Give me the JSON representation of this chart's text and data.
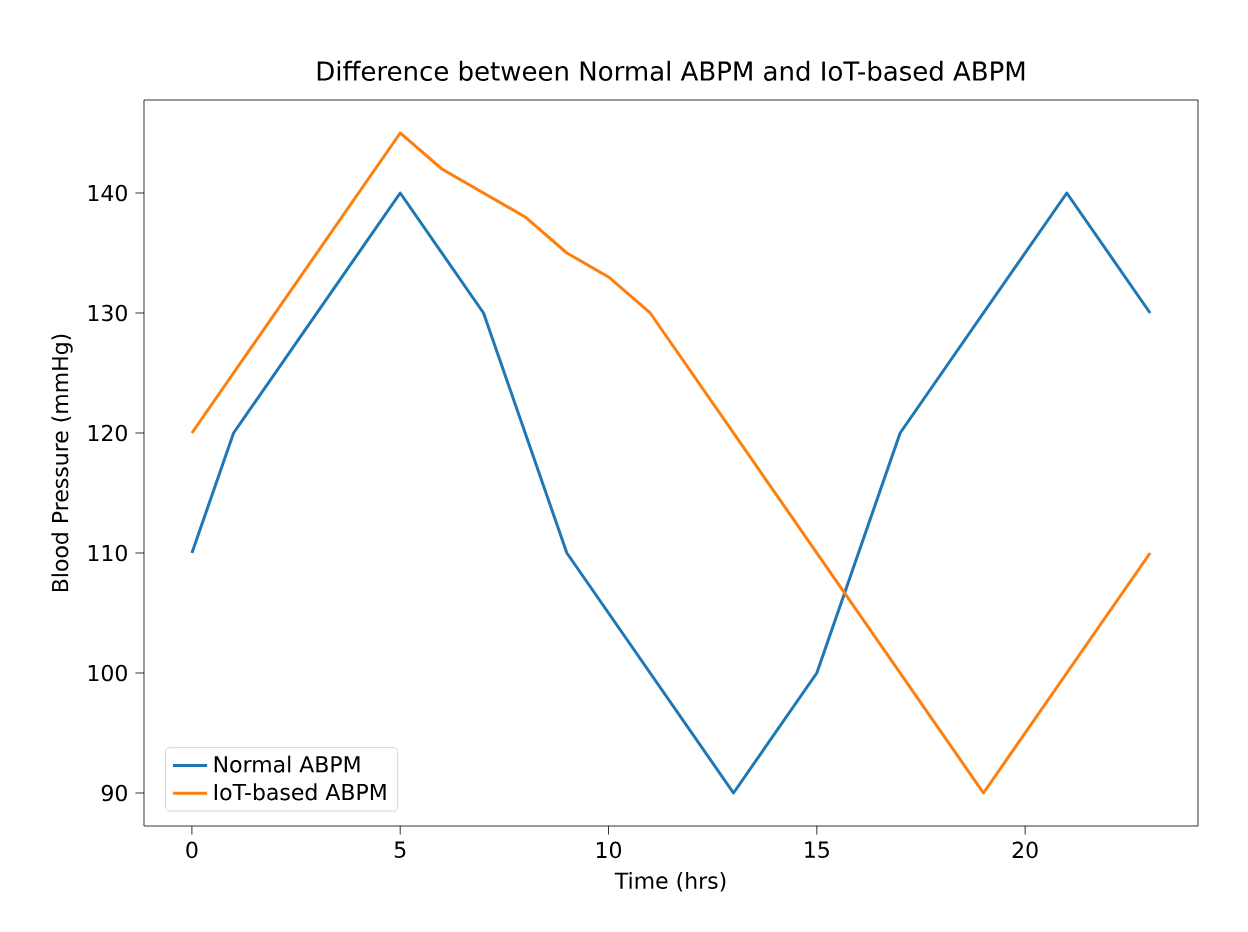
{
  "chart_data": {
    "type": "line",
    "title": "Difference between Normal ABPM and IoT-based ABPM",
    "xlabel": "Time (hrs)",
    "ylabel": "Blood Pressure (mmHg)",
    "xlim": [
      -1.15,
      24.15
    ],
    "ylim": [
      87.25,
      147.75
    ],
    "xticks": [
      0,
      5,
      10,
      15,
      20
    ],
    "yticks": [
      90,
      100,
      110,
      120,
      130,
      140
    ],
    "legend": "bottom left",
    "grid": false,
    "series": [
      {
        "name": "Normal ABPM",
        "color": "#1f77b4",
        "x": [
          0,
          1,
          5,
          7,
          9,
          13,
          15,
          17,
          21,
          23
        ],
        "values": [
          110,
          120,
          140,
          130,
          110,
          90,
          100,
          120,
          140,
          130
        ]
      },
      {
        "name": "IoT-based ABPM",
        "color": "#ff7f0e",
        "x": [
          0,
          5,
          6,
          8,
          9,
          10,
          11,
          19,
          23
        ],
        "values": [
          120,
          145,
          142,
          138,
          135,
          133,
          130,
          90,
          110
        ]
      }
    ]
  }
}
